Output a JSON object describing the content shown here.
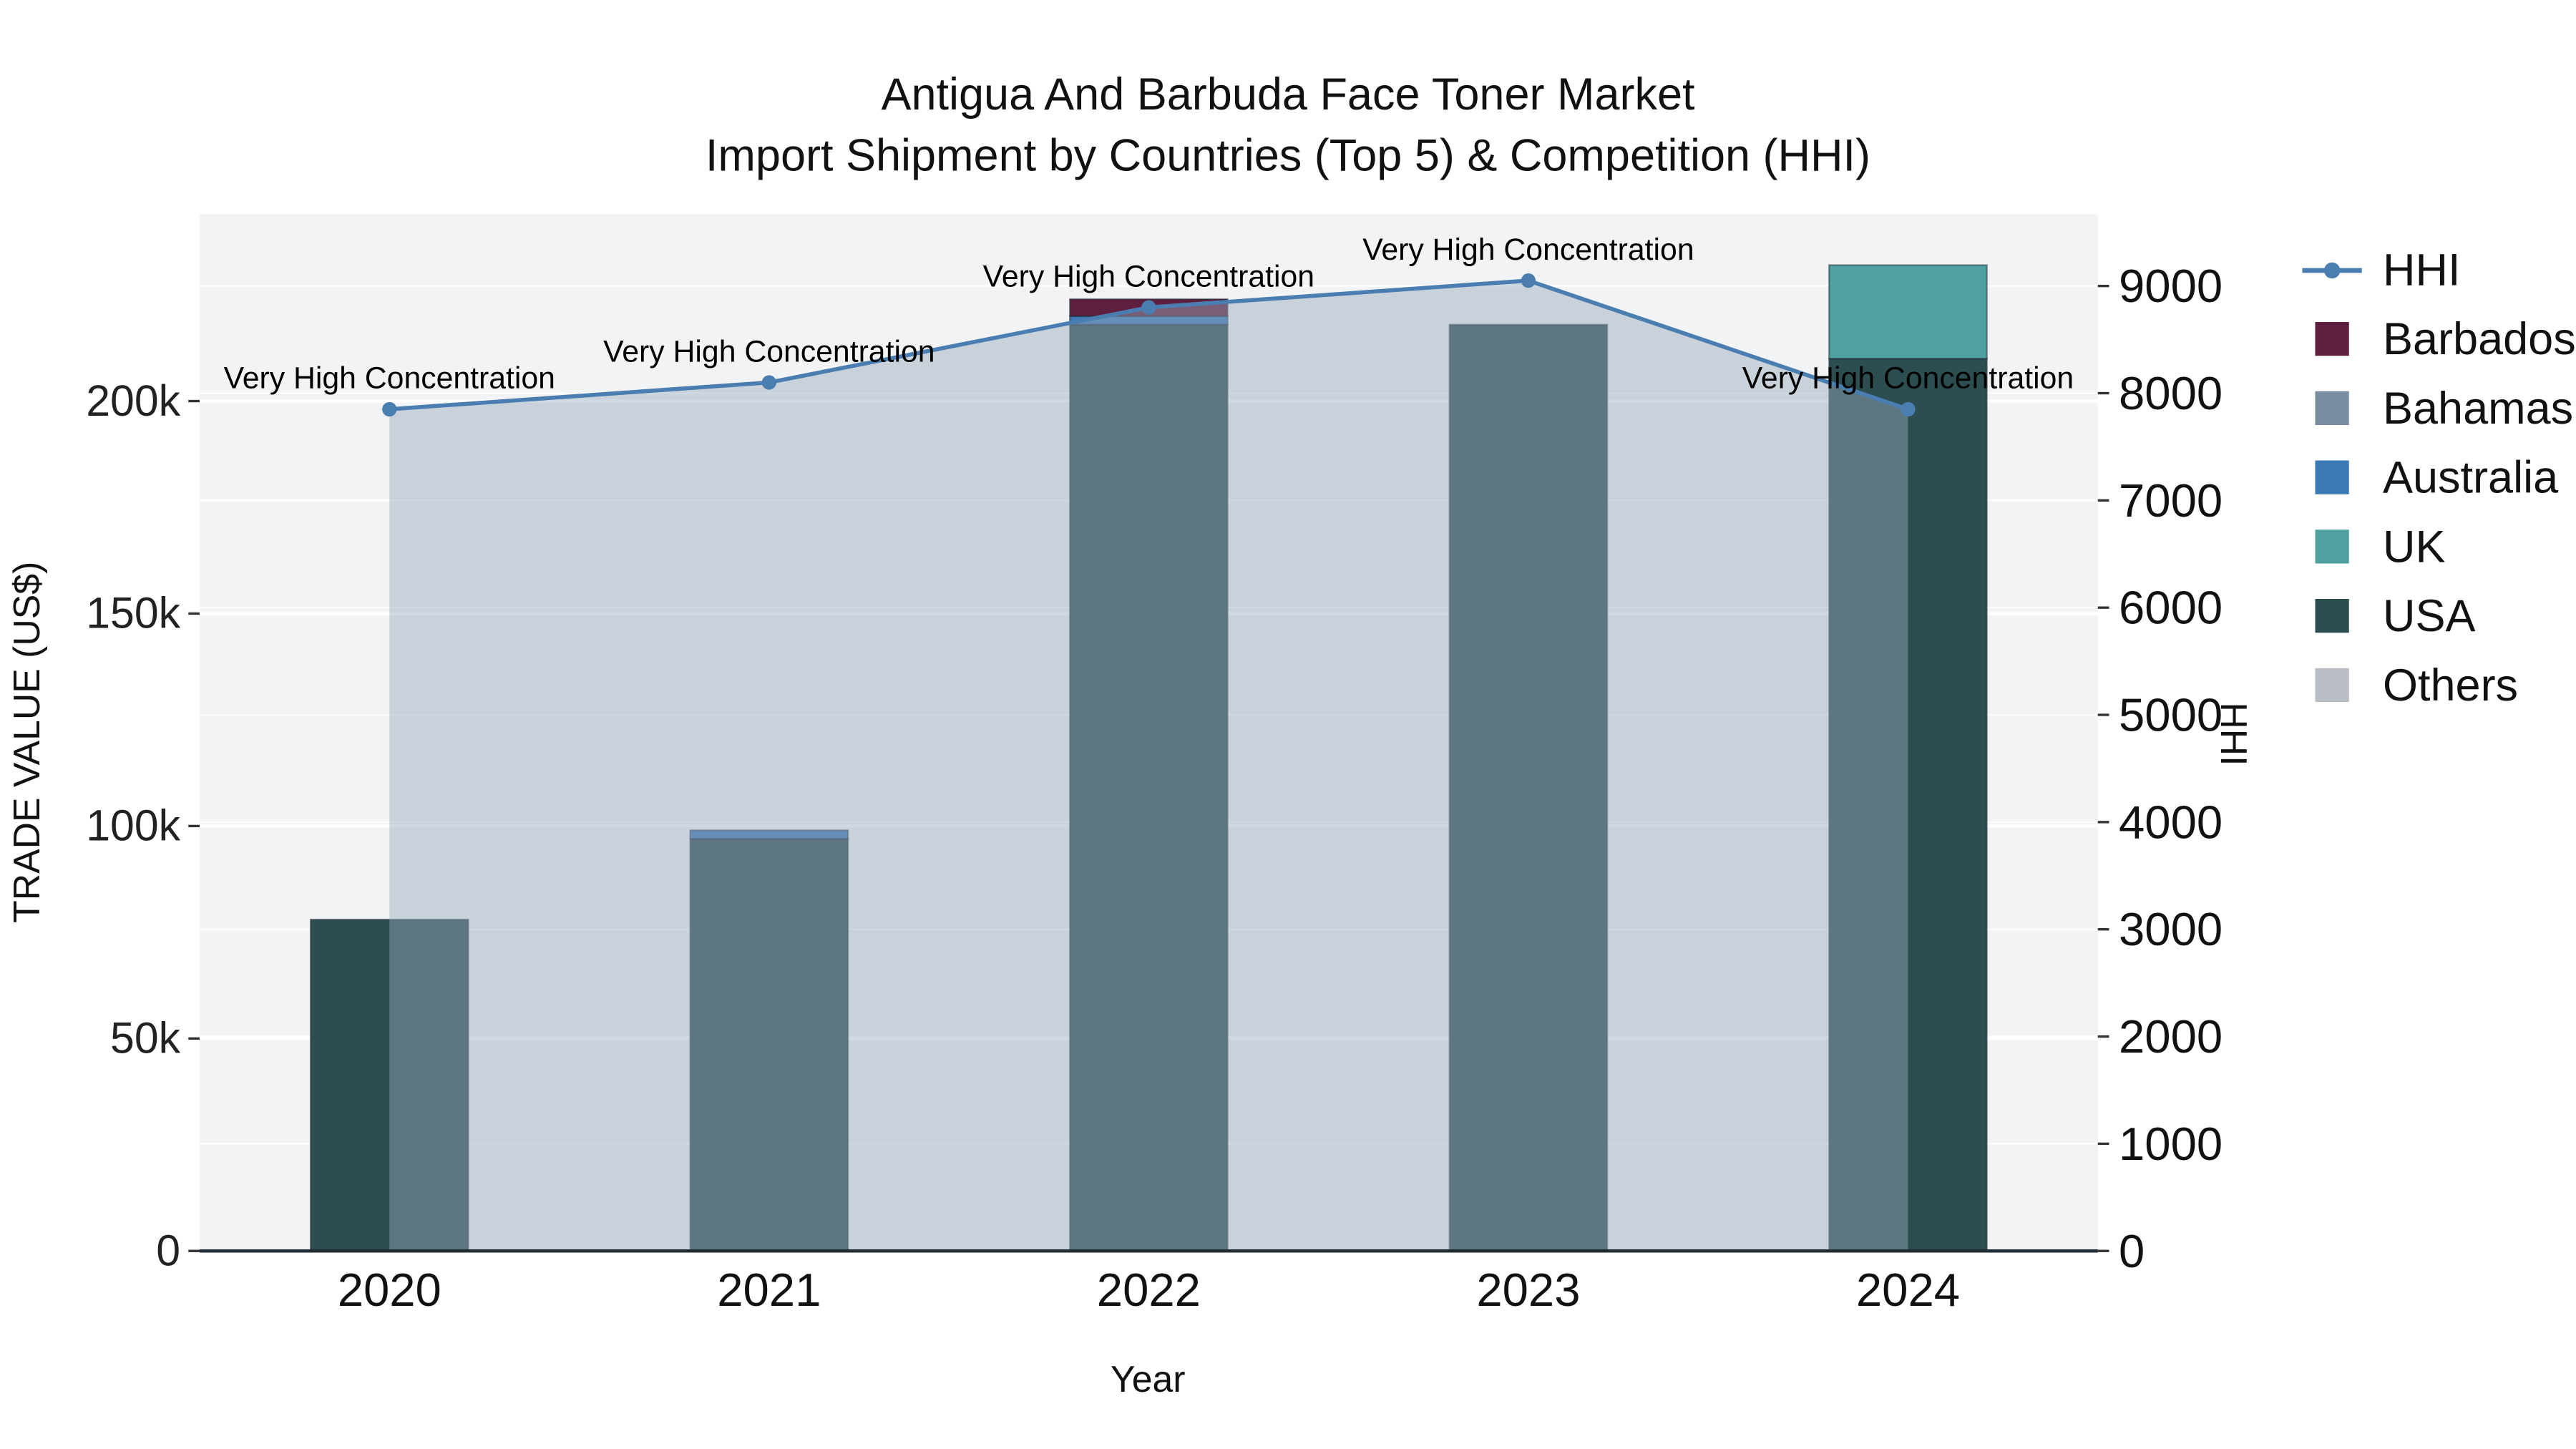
{
  "title": {
    "line1": "Antigua And Barbuda Face Toner Market",
    "line2": "Import Shipment by Countries (Top 5) & Competition (HHI)"
  },
  "axes": {
    "x": {
      "title": "Year",
      "categories": [
        "2020",
        "2021",
        "2022",
        "2023",
        "2024"
      ]
    },
    "y_left": {
      "title": "TRADE VALUE (US$)",
      "tick_labels": [
        "0",
        "50k",
        "100k",
        "150k",
        "200k"
      ],
      "tick_values": [
        0,
        50000,
        100000,
        150000,
        200000
      ],
      "max": 244000
    },
    "y_right": {
      "title": "HHI",
      "tick_labels": [
        "0",
        "1000",
        "2000",
        "3000",
        "4000",
        "5000",
        "6000",
        "7000",
        "8000",
        "9000"
      ],
      "tick_values": [
        0,
        1000,
        2000,
        3000,
        4000,
        5000,
        6000,
        7000,
        8000,
        9000
      ],
      "max": 9670
    }
  },
  "legend": {
    "items": [
      {
        "label": "HHI",
        "type": "line",
        "color": "#4a7eb0"
      },
      {
        "label": "Barbados",
        "type": "square",
        "color": "#5f1f3e"
      },
      {
        "label": "Bahamas",
        "type": "square",
        "color": "#7b8da3"
      },
      {
        "label": "Australia",
        "type": "square",
        "color": "#3c79b7"
      },
      {
        "label": "UK",
        "type": "square",
        "color": "#4fa1a1"
      },
      {
        "label": "USA",
        "type": "square",
        "color": "#2d4e50"
      },
      {
        "label": "Others",
        "type": "square",
        "color": "#b9bdc4"
      }
    ]
  },
  "chart_data": {
    "type": "bar+line",
    "title_line1": "Antigua And Barbuda Face Toner Market",
    "title_line2": "Import Shipment by Countries (Top 5) & Competition (HHI)",
    "xlabel": "Year",
    "ylabel_left": "TRADE VALUE (US$)",
    "ylabel_right": "HHI",
    "categories": [
      "2020",
      "2021",
      "2022",
      "2023",
      "2024"
    ],
    "bar_mode": "stacked",
    "series": [
      {
        "name": "USA",
        "color": "#2d4e50",
        "values": [
          78000,
          97000,
          218000,
          218000,
          210000
        ]
      },
      {
        "name": "UK",
        "color": "#4fa1a1",
        "values": [
          0,
          0,
          0,
          0,
          22000
        ]
      },
      {
        "name": "Australia",
        "color": "#3c79b7",
        "values": [
          0,
          2000,
          2000,
          0,
          0
        ]
      },
      {
        "name": "Bahamas",
        "color": "#7b8da3",
        "values": [
          0,
          0,
          0,
          0,
          0
        ]
      },
      {
        "name": "Barbados",
        "color": "#5f1f3e",
        "values": [
          0,
          0,
          4000,
          0,
          0
        ]
      },
      {
        "name": "Others",
        "color": "#b9bdc4",
        "values": [
          0,
          0,
          0,
          0,
          0
        ]
      }
    ],
    "line": {
      "name": "HHI",
      "color": "#4a7eb0",
      "area_fill": "rgba(151,170,189,0.45)",
      "marker_radius": 4.5,
      "values": [
        7850,
        8100,
        8800,
        9050,
        7850
      ]
    },
    "annotations": [
      {
        "index": 0,
        "text": "Very High Concentration"
      },
      {
        "index": 1,
        "text": "Very High Concentration"
      },
      {
        "index": 2,
        "text": "Very High Concentration"
      },
      {
        "index": 3,
        "text": "Very High Concentration"
      },
      {
        "index": 4,
        "text": "Very High Concentration"
      }
    ],
    "ylim_left": [
      0,
      244000
    ],
    "ylim_right": [
      0,
      9670
    ],
    "grid": true,
    "plot_background": "#f2f3f4",
    "legend_position": "right"
  }
}
